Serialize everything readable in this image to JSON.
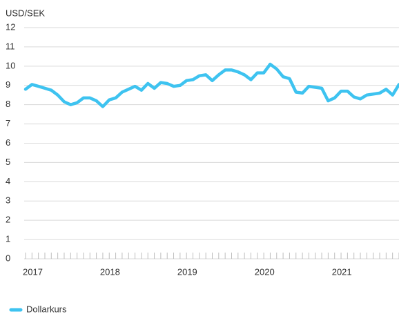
{
  "chart_data": {
    "type": "line",
    "ylabel": "USD/SEK",
    "categories": [
      "2017",
      null,
      null,
      null,
      null,
      null,
      null,
      null,
      null,
      null,
      null,
      null,
      "2018",
      null,
      null,
      null,
      null,
      null,
      null,
      null,
      null,
      null,
      null,
      null,
      "2019",
      null,
      null,
      null,
      null,
      null,
      null,
      null,
      null,
      null,
      null,
      null,
      "2020",
      null,
      null,
      null,
      null,
      null,
      null,
      null,
      null,
      null,
      null,
      null,
      "2021",
      null,
      null,
      null,
      null,
      null,
      null,
      null,
      null,
      null,
      null
    ],
    "series": [
      {
        "name": "Dollarkurs",
        "color": "#3ec3f0",
        "values": [
          8.8,
          9.05,
          8.95,
          8.85,
          8.75,
          8.5,
          8.15,
          8.0,
          8.1,
          8.35,
          8.35,
          8.2,
          7.9,
          8.25,
          8.35,
          8.65,
          8.8,
          8.95,
          8.75,
          9.1,
          8.85,
          9.15,
          9.1,
          8.95,
          9.0,
          9.25,
          9.3,
          9.5,
          9.55,
          9.25,
          9.55,
          9.8,
          9.8,
          9.7,
          9.55,
          9.3,
          9.65,
          9.65,
          10.1,
          9.85,
          9.45,
          9.35,
          8.65,
          8.6,
          8.95,
          8.9,
          8.85,
          8.2,
          8.35,
          8.7,
          8.7,
          8.4,
          8.3,
          8.5,
          8.55,
          8.6,
          8.8,
          8.5,
          9.05
        ]
      }
    ],
    "ylim": [
      0,
      12
    ],
    "yticks": [
      0,
      1,
      2,
      3,
      4,
      5,
      6,
      7,
      8,
      9,
      10,
      11,
      12
    ],
    "grid": true,
    "legend": "bottom-left"
  }
}
